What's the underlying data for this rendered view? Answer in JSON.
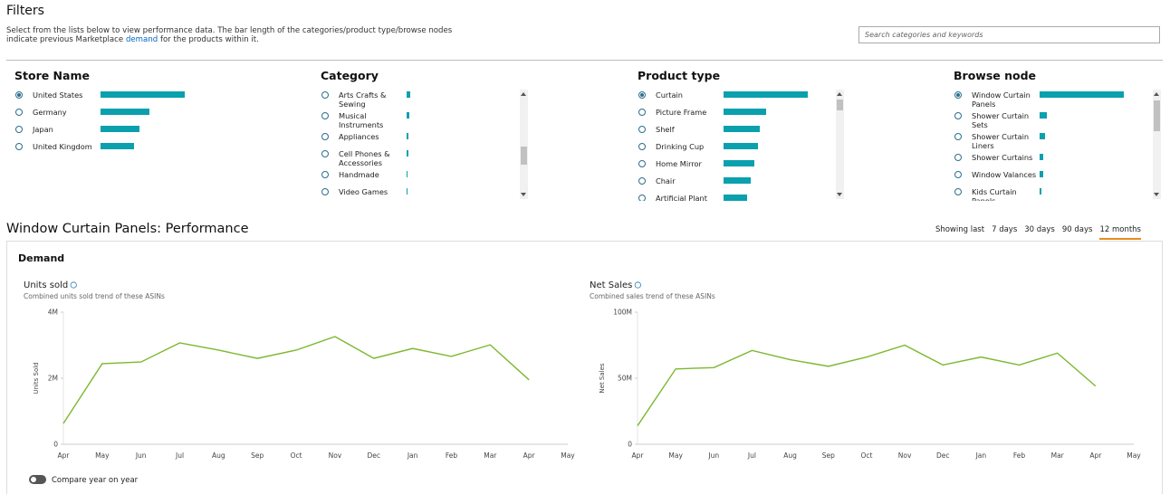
{
  "filters": {
    "title": "Filters",
    "description": {
      "before": "Select from the lists below to view performance data. The bar length of the categories/product type/browse nodes indicate previous Marketplace ",
      "link": "demand",
      "after": " for the products within it."
    },
    "search_placeholder": "Search categories and keywords"
  },
  "lists": [
    {
      "title": "Store Name",
      "selected": 0,
      "items": [
        {
          "label": "United States",
          "value": 100
        },
        {
          "label": "Germany",
          "value": 58
        },
        {
          "label": "Japan",
          "value": 46
        },
        {
          "label": "United Kingdom",
          "value": 40
        }
      ]
    },
    {
      "title": "Category",
      "items": [
        {
          "label": "Arts Crafts & Sewing",
          "value": 4
        },
        {
          "label": "Musical Instruments",
          "value": 3
        },
        {
          "label": "Appliances",
          "value": 2
        },
        {
          "label": "Cell Phones & Accessories",
          "value": 2
        },
        {
          "label": "Handmade",
          "value": 1
        },
        {
          "label": "Video Games",
          "value": 1
        }
      ]
    },
    {
      "title": "Product type",
      "selected": 0,
      "items": [
        {
          "label": "Curtain",
          "value": 100
        },
        {
          "label": "Picture Frame",
          "value": 50
        },
        {
          "label": "Shelf",
          "value": 43
        },
        {
          "label": "Drinking Cup",
          "value": 41
        },
        {
          "label": "Home Mirror",
          "value": 37
        },
        {
          "label": "Chair",
          "value": 32
        },
        {
          "label": "Artificial Plant",
          "value": 28
        }
      ]
    },
    {
      "title": "Browse node",
      "selected": 0,
      "items": [
        {
          "label": "Window Curtain Panels",
          "value": 100
        },
        {
          "label": "Shower Curtain Sets",
          "value": 9
        },
        {
          "label": "Shower Curtain Liners",
          "value": 6
        },
        {
          "label": "Shower Curtains",
          "value": 4
        },
        {
          "label": "Window Valances",
          "value": 4
        },
        {
          "label": "Kids Curtain Panels",
          "value": 2
        }
      ]
    }
  ],
  "performance": {
    "title": "Window Curtain Panels: Performance",
    "range": {
      "label": "Showing last",
      "options": [
        "7 days",
        "30 days",
        "90 days",
        "12 months"
      ],
      "selected": 3
    },
    "section": "Demand",
    "toggle": "Compare year on year"
  },
  "chart_data": [
    {
      "type": "line",
      "title": "Units sold",
      "subtitle": "Combined units sold trend of these ASINs",
      "y_label": "Units Sold",
      "categories": [
        "Apr",
        "May",
        "Jun",
        "Jul",
        "Aug",
        "Sep",
        "Oct",
        "Nov",
        "Dec",
        "Jan",
        "Feb",
        "Mar",
        "Apr",
        "May"
      ],
      "values": [
        630000,
        2440000,
        2490000,
        3070000,
        2850000,
        2600000,
        2850000,
        3260000,
        2600000,
        2900000,
        2660000,
        3010000,
        1950000,
        null
      ],
      "color": "#7cb82f",
      "ylim": [
        0,
        4000000
      ],
      "yticks": [
        0,
        {
          "value": 2000000,
          "label": "2M"
        },
        {
          "value": 4000000,
          "label": "4M"
        }
      ],
      "grid": false
    },
    {
      "type": "line",
      "title": "Net Sales",
      "subtitle": "Combined sales trend of these ASINs",
      "y_label": "Net Sales",
      "categories": [
        "Apr",
        "May",
        "Jun",
        "Jul",
        "Aug",
        "Sep",
        "Oct",
        "Nov",
        "Dec",
        "Jan",
        "Feb",
        "Mar",
        "Apr",
        "May"
      ],
      "values": [
        14000000,
        57000000,
        58000000,
        71000000,
        64000000,
        59000000,
        66000000,
        75000000,
        60000000,
        66000000,
        60000000,
        69000000,
        44000000,
        null
      ],
      "color": "#7cb82f",
      "ylim": [
        0,
        100000000
      ],
      "yticks": [
        0,
        {
          "value": 50000000,
          "label": "50M"
        },
        {
          "value": 100000000,
          "label": "100M"
        }
      ],
      "grid": false
    }
  ]
}
